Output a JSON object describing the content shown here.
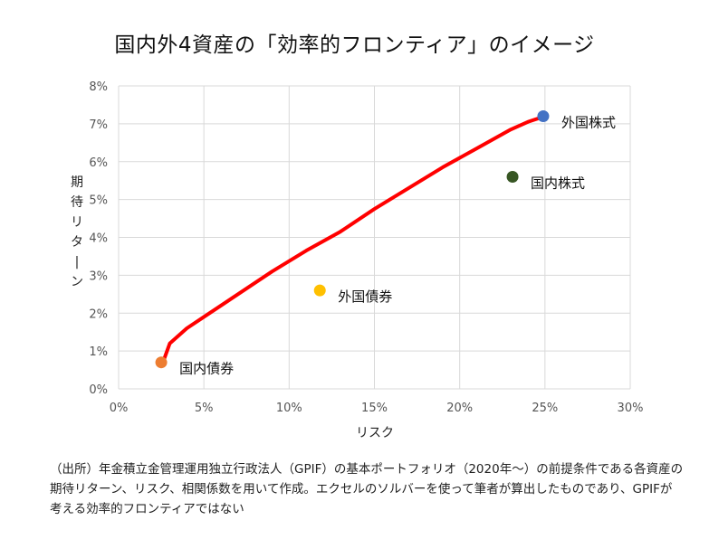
{
  "title": "国内外4資産の「効率的フロンティア」のイメージ",
  "note": "（出所）年金積立金管理運用独立行政法人（GPIF）の基本ポートフォリオ（2020年～）の前提条件である各資産の期待リターン、リスク、相関係数を用いて作成。エクセルのソルバーを使って筆者が算出したものであり、GPIFが考える効率的フロンティアではない",
  "chart_data": {
    "type": "scatter",
    "title": "国内外4資産の「効率的フロンティア」のイメージ",
    "xlabel": "リスク",
    "ylabel": "期待リターン",
    "xlim": [
      0,
      30
    ],
    "ylim": [
      0,
      8
    ],
    "x_ticks": [
      "0%",
      "5%",
      "10%",
      "15%",
      "20%",
      "25%",
      "30%"
    ],
    "y_ticks": [
      "0%",
      "1%",
      "2%",
      "3%",
      "4%",
      "5%",
      "6%",
      "7%",
      "8%"
    ],
    "grid": true,
    "series": [
      {
        "name": "",
        "type": "line",
        "color": "#ff0000",
        "x": [
          2.6,
          3.0,
          4.0,
          5.0,
          7.0,
          9.0,
          11.0,
          13.0,
          15.0,
          17.0,
          19.0,
          21.0,
          23.0,
          24.0,
          25.0
        ],
        "y": [
          0.7,
          1.2,
          1.6,
          1.9,
          2.5,
          3.1,
          3.65,
          4.15,
          4.75,
          5.3,
          5.85,
          6.35,
          6.85,
          7.05,
          7.2
        ]
      }
    ],
    "points": [
      {
        "label": "外国株式",
        "x": 24.9,
        "y": 7.2,
        "color": "#4472c4"
      },
      {
        "label": "国内株式",
        "x": 23.1,
        "y": 5.6,
        "color": "#375623"
      },
      {
        "label": "外国債券",
        "x": 11.8,
        "y": 2.6,
        "color": "#ffc000"
      },
      {
        "label": "国内債券",
        "x": 2.5,
        "y": 0.7,
        "color": "#ed7d31"
      }
    ]
  }
}
